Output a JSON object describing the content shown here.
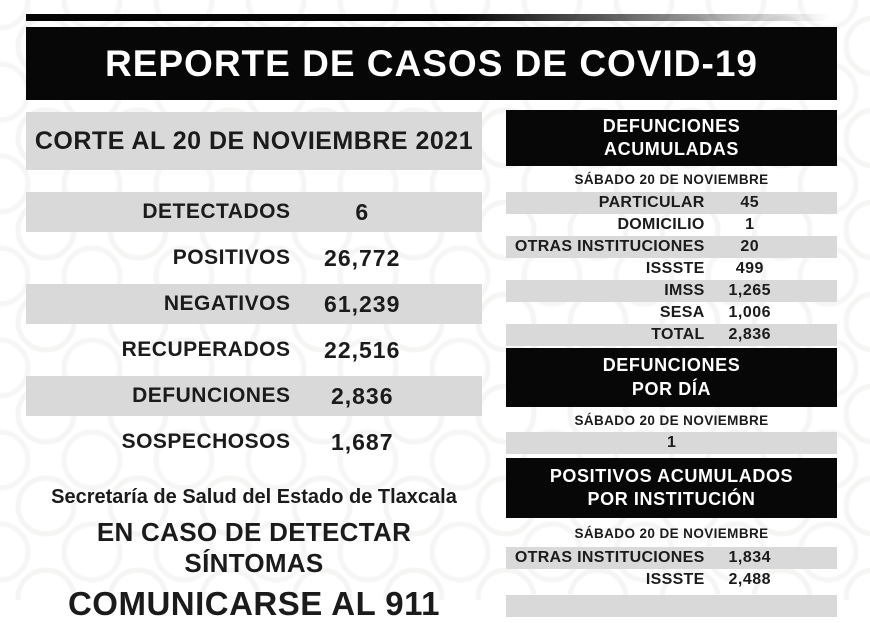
{
  "header": {
    "title": "REPORTE DE CASOS DE COVID-19"
  },
  "left_panel": {
    "cutoff_title": "CORTE AL 20 DE NOVIEMBRE 2021",
    "stats": [
      {
        "label": "DETECTADOS",
        "value": "6"
      },
      {
        "label": "POSITIVOS",
        "value": "26,772"
      },
      {
        "label": "NEGATIVOS",
        "value": "61,239"
      },
      {
        "label": "RECUPERADOS",
        "value": "22,516"
      },
      {
        "label": "DEFUNCIONES",
        "value": "2,836"
      },
      {
        "label": "SOSPECHOSOS",
        "value": "1,687"
      }
    ],
    "footer": {
      "org": "Secretaría de Salud del Estado de Tlaxcala",
      "line1": "EN CASO DE DETECTAR SÍNTOMAS",
      "line2": "COMUNICARSE AL 911"
    }
  },
  "right_panel": {
    "sections": [
      {
        "title_line1": "DEFUNCIONES",
        "title_line2": "ACUMULADAS",
        "date": "SÁBADO 20 DE NOVIEMBRE",
        "rows": [
          {
            "label": "PARTICULAR",
            "value": "45"
          },
          {
            "label": "DOMICILIO",
            "value": "1"
          },
          {
            "label": "OTRAS INSTITUCIONES",
            "value": "20"
          },
          {
            "label": "ISSSTE",
            "value": "499"
          },
          {
            "label": "IMSS",
            "value": "1,265"
          },
          {
            "label": "SESA",
            "value": "1,006"
          },
          {
            "label": "TOTAL",
            "value": "2,836"
          }
        ]
      },
      {
        "title_line1": "DEFUNCIONES",
        "title_line2": "POR DÍA",
        "date": "SÁBADO 20 DE NOVIEMBRE",
        "single_value": "1"
      },
      {
        "title_line1": "POSITIVOS ACUMULADOS",
        "title_line2": "POR INSTITUCIÓN",
        "date": "SÁBADO 20 DE NOVIEMBRE",
        "rows": [
          {
            "label": "OTRAS INSTITUCIONES",
            "value": "1,834"
          },
          {
            "label": "ISSSTE",
            "value": "2,488"
          }
        ]
      }
    ]
  },
  "colors": {
    "box_black": "#070707",
    "row_gray": "#d9d9d9",
    "text": "#1b1b1b",
    "background": "#ffffff"
  }
}
